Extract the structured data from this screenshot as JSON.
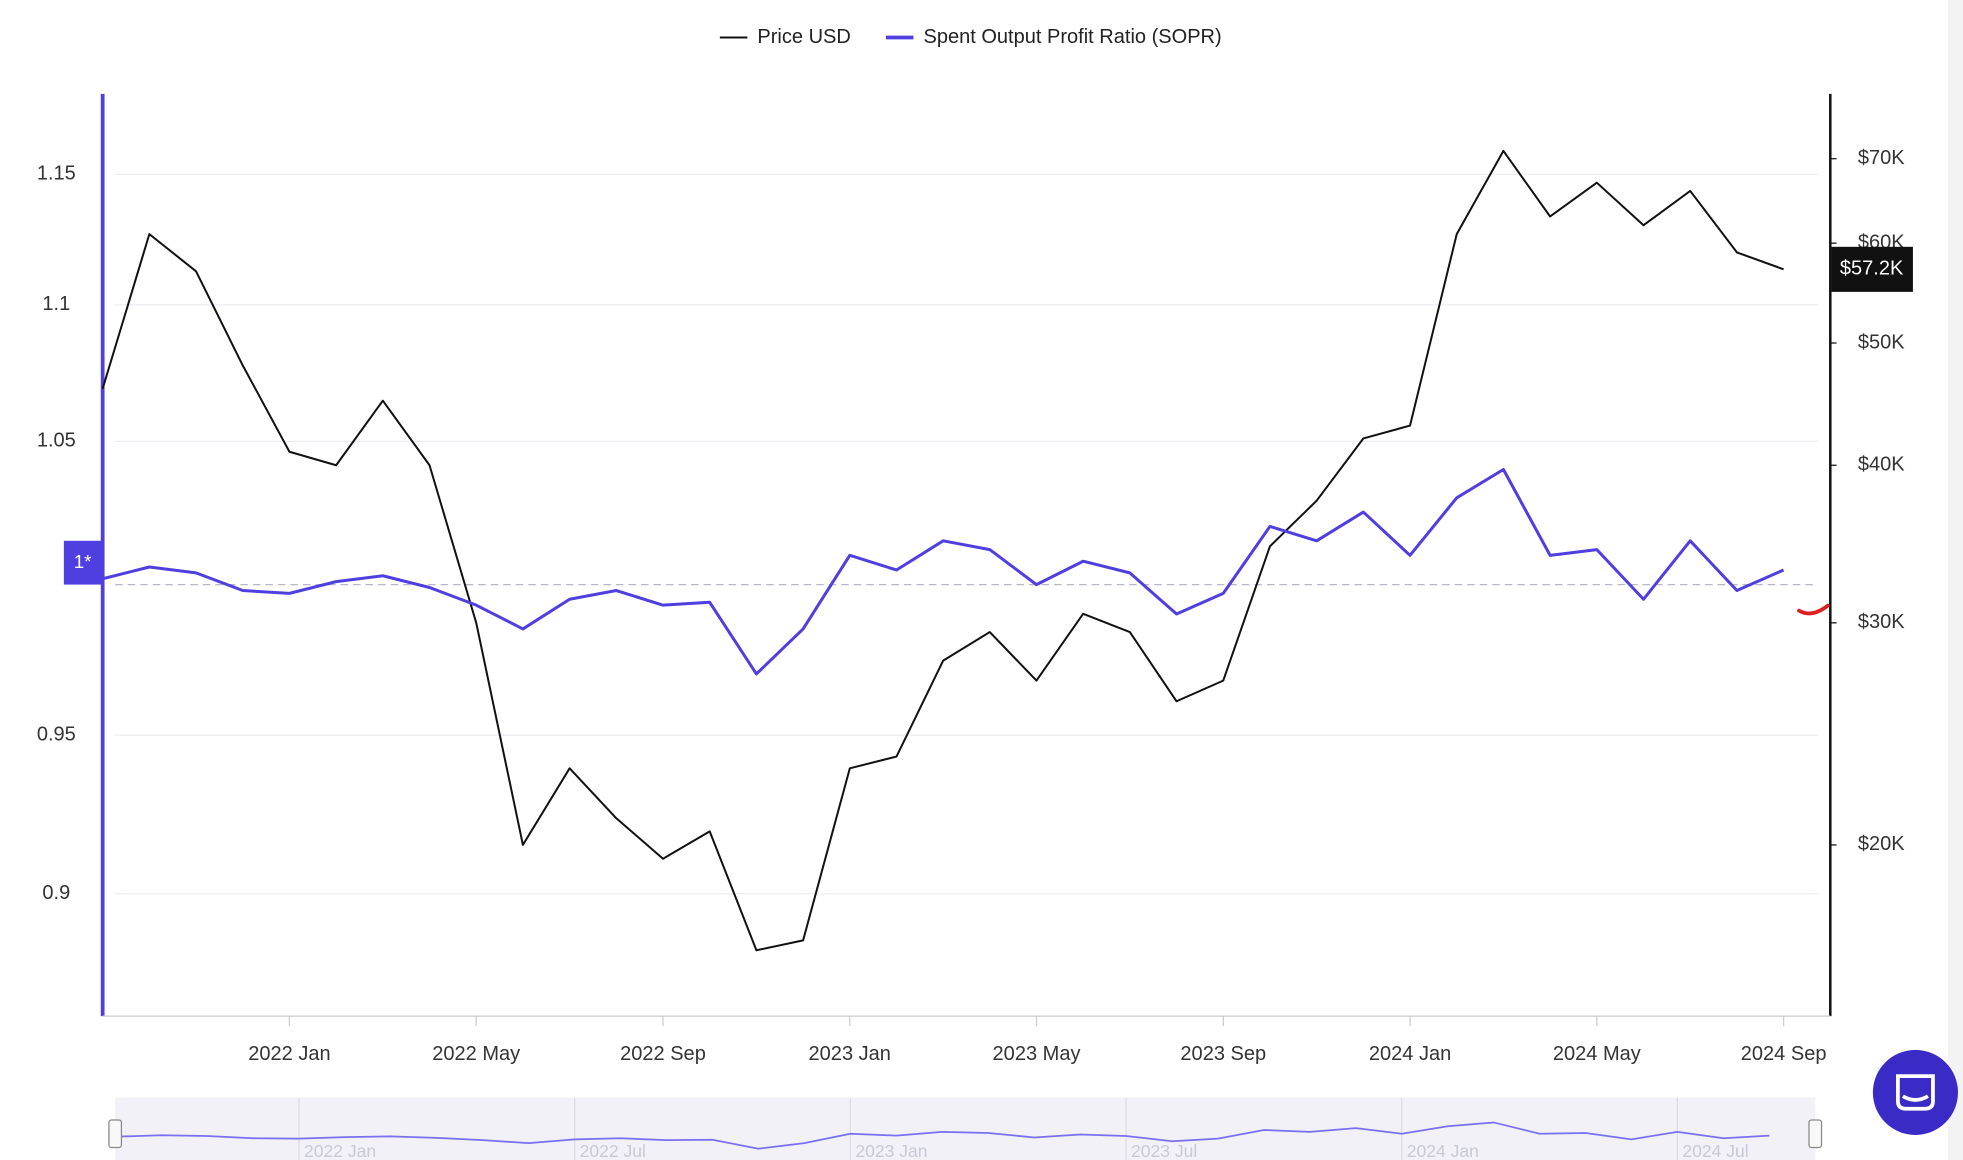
{
  "chart_data": {
    "type": "line",
    "x": [
      "2021-09",
      "2021-10",
      "2021-11",
      "2021-12",
      "2022-01",
      "2022-02",
      "2022-03",
      "2022-04",
      "2022-05",
      "2022-06",
      "2022-07",
      "2022-08",
      "2022-09",
      "2022-10",
      "2022-11",
      "2022-12",
      "2023-01",
      "2023-02",
      "2023-03",
      "2023-04",
      "2023-05",
      "2023-06",
      "2023-07",
      "2023-08",
      "2023-09",
      "2023-10",
      "2023-11",
      "2023-12",
      "2024-01",
      "2024-02",
      "2024-03",
      "2024-04",
      "2024-05",
      "2024-06",
      "2024-07",
      "2024-08",
      "2024-09"
    ],
    "series": [
      {
        "name": "Price USD",
        "color": "#111111",
        "axis": "y2",
        "values": [
          46000,
          61000,
          57000,
          48000,
          41000,
          40000,
          45000,
          40000,
          30000,
          20000,
          23000,
          21000,
          19500,
          20500,
          16500,
          16800,
          23000,
          23500,
          28000,
          29500,
          27000,
          30500,
          29500,
          26000,
          27000,
          34500,
          37500,
          42000,
          43000,
          61000,
          71000,
          63000,
          67000,
          62000,
          66000,
          59000,
          57200
        ]
      },
      {
        "name": "Spent Output Profit Ratio (SOPR)",
        "color": "#4f3fe0",
        "values": [
          1.002,
          1.006,
          1.004,
          0.998,
          0.997,
          1.001,
          1.003,
          0.999,
          0.993,
          0.985,
          0.995,
          0.998,
          0.993,
          0.994,
          0.97,
          0.985,
          1.01,
          1.005,
          1.015,
          1.012,
          1.0,
          1.008,
          1.004,
          0.99,
          0.997,
          1.02,
          1.015,
          1.025,
          1.01,
          1.03,
          1.04,
          1.01,
          1.012,
          0.995,
          1.015,
          0.998,
          1.005
        ]
      }
    ],
    "last_value_label": "$57.2K",
    "xlim": [
      "2021-09",
      "2024-10"
    ],
    "xticks": [
      {
        "value": "2022-01",
        "label": "2022 Jan"
      },
      {
        "value": "2022-05",
        "label": "2022 May"
      },
      {
        "value": "2022-09",
        "label": "2022 Sep"
      },
      {
        "value": "2023-01",
        "label": "2023 Jan"
      },
      {
        "value": "2023-05",
        "label": "2023 May"
      },
      {
        "value": "2023-09",
        "label": "2023 Sep"
      },
      {
        "value": "2024-01",
        "label": "2024 Jan"
      },
      {
        "value": "2024-05",
        "label": "2024 May"
      },
      {
        "value": "2024-09",
        "label": "2024 Sep"
      }
    ],
    "ylim": [
      0.864,
      1.182
    ],
    "ylog": true,
    "yticks": [
      0.9,
      0.95,
      {
        "value": 1,
        "label": "1*"
      },
      1.05,
      1.1,
      1.15
    ],
    "y2lim": [
      14700,
      78800
    ],
    "y2log": true,
    "y2ticks": [
      {
        "value": 20000,
        "label": "$20K"
      },
      {
        "value": 30000,
        "label": "$30K"
      },
      {
        "value": 40000,
        "label": "$40K"
      },
      {
        "value": 50000,
        "label": "$50K"
      },
      {
        "value": 60000,
        "label": "$60K"
      },
      {
        "value": 70000,
        "label": "$70K"
      }
    ],
    "grid": true,
    "legend": "top",
    "navigator": {
      "ticks": [
        {
          "value": "2022-01",
          "label": "2022 Jan"
        },
        {
          "value": "2022-07",
          "label": "2022 Jul"
        },
        {
          "value": "2023-01",
          "label": "2023 Jan"
        },
        {
          "value": "2023-07",
          "label": "2023 Jul"
        },
        {
          "value": "2024-01",
          "label": "2024 Jan"
        },
        {
          "value": "2024-07",
          "label": "2024 Jul"
        }
      ]
    }
  }
}
